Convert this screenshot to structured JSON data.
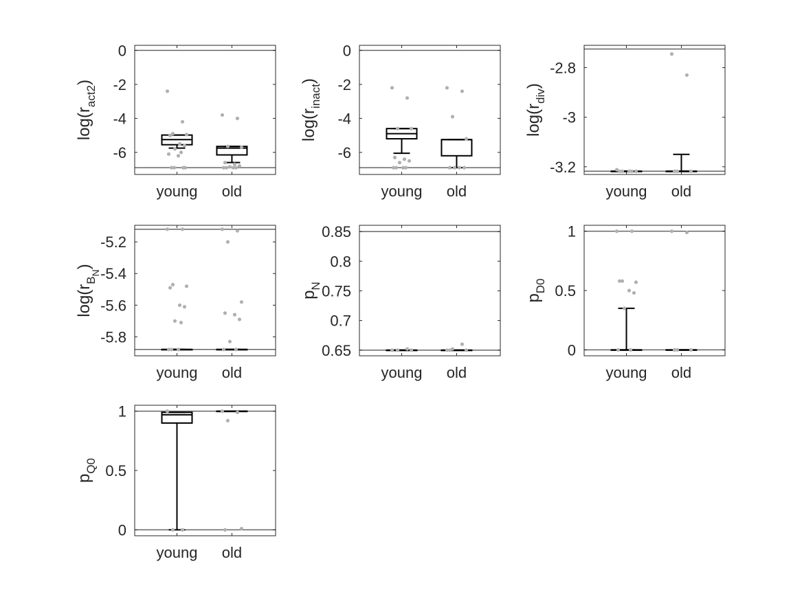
{
  "colors": {
    "box": "#000000",
    "points": "#b0b0b0",
    "bounds": "#666666",
    "axes": "#262626",
    "text": "#262626"
  },
  "chart_data": [
    {
      "type": "box",
      "ylabel": {
        "base": "log(r",
        "sub": "act2",
        "close": ")"
      },
      "categories": [
        "young",
        "old"
      ],
      "ylim": [
        -7.3,
        0.3
      ],
      "yticks": [
        0,
        -2,
        -4,
        -6
      ],
      "bounds": [
        0,
        -6.9
      ],
      "boxes": [
        {
          "q1": -5.55,
          "median": -5.25,
          "q3": -4.98,
          "whisker_low": -5.75,
          "whisker_high": -4.98
        },
        {
          "q1": -6.15,
          "median": -5.75,
          "q3": -5.65,
          "whisker_low": -6.6,
          "whisker_high": -5.65
        }
      ],
      "points": [
        [
          -2.4,
          -4.2,
          -4.9,
          -4.95,
          -5.0,
          -5.5,
          -5.6,
          -5.8,
          -6.0,
          -6.1,
          -6.2,
          -6.9,
          -6.9,
          -6.9,
          -6.9
        ],
        [
          -3.8,
          -4.0,
          -5.65,
          -5.7,
          -6.6,
          -6.7,
          -6.8,
          -6.85,
          -6.9,
          -6.9,
          -6.9,
          -6.9
        ]
      ]
    },
    {
      "type": "box",
      "ylabel": {
        "base": "log(r",
        "sub": "inact",
        "close": ")"
      },
      "categories": [
        "young",
        "old"
      ],
      "ylim": [
        -7.3,
        0.3
      ],
      "yticks": [
        0,
        -2,
        -4,
        -6
      ],
      "bounds": [
        0,
        -6.9
      ],
      "boxes": [
        {
          "q1": -5.2,
          "median": -4.9,
          "q3": -4.6,
          "whisker_low": -6.05,
          "whisker_high": -4.6
        },
        {
          "q1": -6.2,
          "median": -5.25,
          "q3": -5.25,
          "whisker_low": -6.9,
          "whisker_high": -5.25
        }
      ],
      "points": [
        [
          -2.2,
          -2.8,
          -4.6,
          -4.6,
          -6.3,
          -6.4,
          -6.5,
          -6.6,
          -6.9,
          -6.9,
          -6.9,
          -6.9
        ],
        [
          -2.2,
          -2.4,
          -3.9,
          -5.2,
          -6.9,
          -6.9,
          -6.9,
          -6.9
        ]
      ]
    },
    {
      "type": "box",
      "ylabel": {
        "base": "log(r",
        "sub": "div",
        "close": ")"
      },
      "categories": [
        "young",
        "old"
      ],
      "ylim": [
        -3.231,
        -2.71
      ],
      "yticks": [
        -2.8,
        -3,
        -3.2
      ],
      "bounds": [
        -2.725,
        -3.218
      ],
      "boxes": [
        {
          "q1": -3.218,
          "median": -3.218,
          "q3": -3.218,
          "whisker_low": -3.218,
          "whisker_high": -3.218
        },
        {
          "q1": -3.218,
          "median": -3.218,
          "q3": -3.218,
          "whisker_low": -3.218,
          "whisker_high": -3.15
        }
      ],
      "points": [
        [
          -3.212,
          -3.218,
          -3.218,
          -3.218,
          -3.218,
          -3.218
        ],
        [
          -2.745,
          -2.83,
          -3.218,
          -3.218,
          -3.218
        ]
      ]
    },
    {
      "type": "box",
      "ylabel": {
        "base": "log(r",
        "sub": "B",
        "subsub": "N",
        "close": ")"
      },
      "categories": [
        "young",
        "old"
      ],
      "ylim": [
        -5.92,
        -5.095
      ],
      "yticks": [
        -5.2,
        -5.4,
        -5.6,
        -5.8
      ],
      "bounds": [
        -5.12,
        -5.88
      ],
      "boxes": [
        {
          "q1": -5.88,
          "median": -5.88,
          "q3": -5.88,
          "whisker_low": -5.88,
          "whisker_high": -5.88
        },
        {
          "q1": -5.88,
          "median": -5.88,
          "q3": -5.88,
          "whisker_low": -5.88,
          "whisker_high": -5.88
        }
      ],
      "points": [
        [
          -5.12,
          -5.12,
          -5.47,
          -5.48,
          -5.49,
          -5.6,
          -5.61,
          -5.7,
          -5.71,
          -5.88,
          -5.88,
          -5.88
        ],
        [
          -5.12,
          -5.13,
          -5.2,
          -5.58,
          -5.65,
          -5.66,
          -5.69,
          -5.83,
          -5.88,
          -5.88
        ]
      ]
    },
    {
      "type": "box",
      "ylabel": {
        "base": "p",
        "sub": "N",
        "close": ""
      },
      "categories": [
        "young",
        "old"
      ],
      "ylim": [
        0.6405,
        0.8605
      ],
      "yticks": [
        0.85,
        0.8,
        0.75,
        0.7,
        0.65
      ],
      "bounds": [
        0.85,
        0.65
      ],
      "boxes": [
        {
          "q1": 0.65,
          "median": 0.65,
          "q3": 0.65,
          "whisker_low": 0.65,
          "whisker_high": 0.65
        },
        {
          "q1": 0.65,
          "median": 0.65,
          "q3": 0.65,
          "whisker_low": 0.65,
          "whisker_high": 0.65
        }
      ],
      "points": [
        [
          0.65,
          0.652,
          0.65,
          0.65
        ],
        [
          0.65,
          0.66,
          0.652,
          0.65,
          0.65
        ]
      ]
    },
    {
      "type": "box",
      "ylabel": {
        "base": "p",
        "sub": "D0",
        "close": ""
      },
      "categories": [
        "young",
        "old"
      ],
      "ylim": [
        -0.05,
        1.05
      ],
      "yticks": [
        1,
        0.5,
        0
      ],
      "bounds": [
        1,
        0
      ],
      "boxes": [
        {
          "q1": 0,
          "median": 0,
          "q3": 0,
          "whisker_low": 0,
          "whisker_high": 0.35
        },
        {
          "q1": 0,
          "median": 0,
          "q3": 0,
          "whisker_low": 0,
          "whisker_high": 0
        }
      ],
      "points": [
        [
          1,
          1,
          0.58,
          0.57,
          0.58,
          0.5,
          0.48,
          0.35,
          0,
          0
        ],
        [
          1,
          0.99,
          0,
          0,
          0
        ]
      ]
    },
    {
      "type": "box",
      "ylabel": {
        "base": "p",
        "sub": "Q0",
        "close": ""
      },
      "categories": [
        "young",
        "old"
      ],
      "ylim": [
        -0.05,
        1.05
      ],
      "yticks": [
        1,
        0.5,
        0
      ],
      "bounds": [
        1,
        0
      ],
      "boxes": [
        {
          "q1": 0.9,
          "median": 0.97,
          "q3": 0.99,
          "whisker_low": 0,
          "whisker_high": 0.99
        },
        {
          "q1": 1,
          "median": 1,
          "q3": 1,
          "whisker_low": 1,
          "whisker_high": 1
        }
      ],
      "points": [
        [
          1,
          0,
          0
        ],
        [
          1,
          0.99,
          0.92,
          0.01,
          0
        ]
      ]
    }
  ]
}
